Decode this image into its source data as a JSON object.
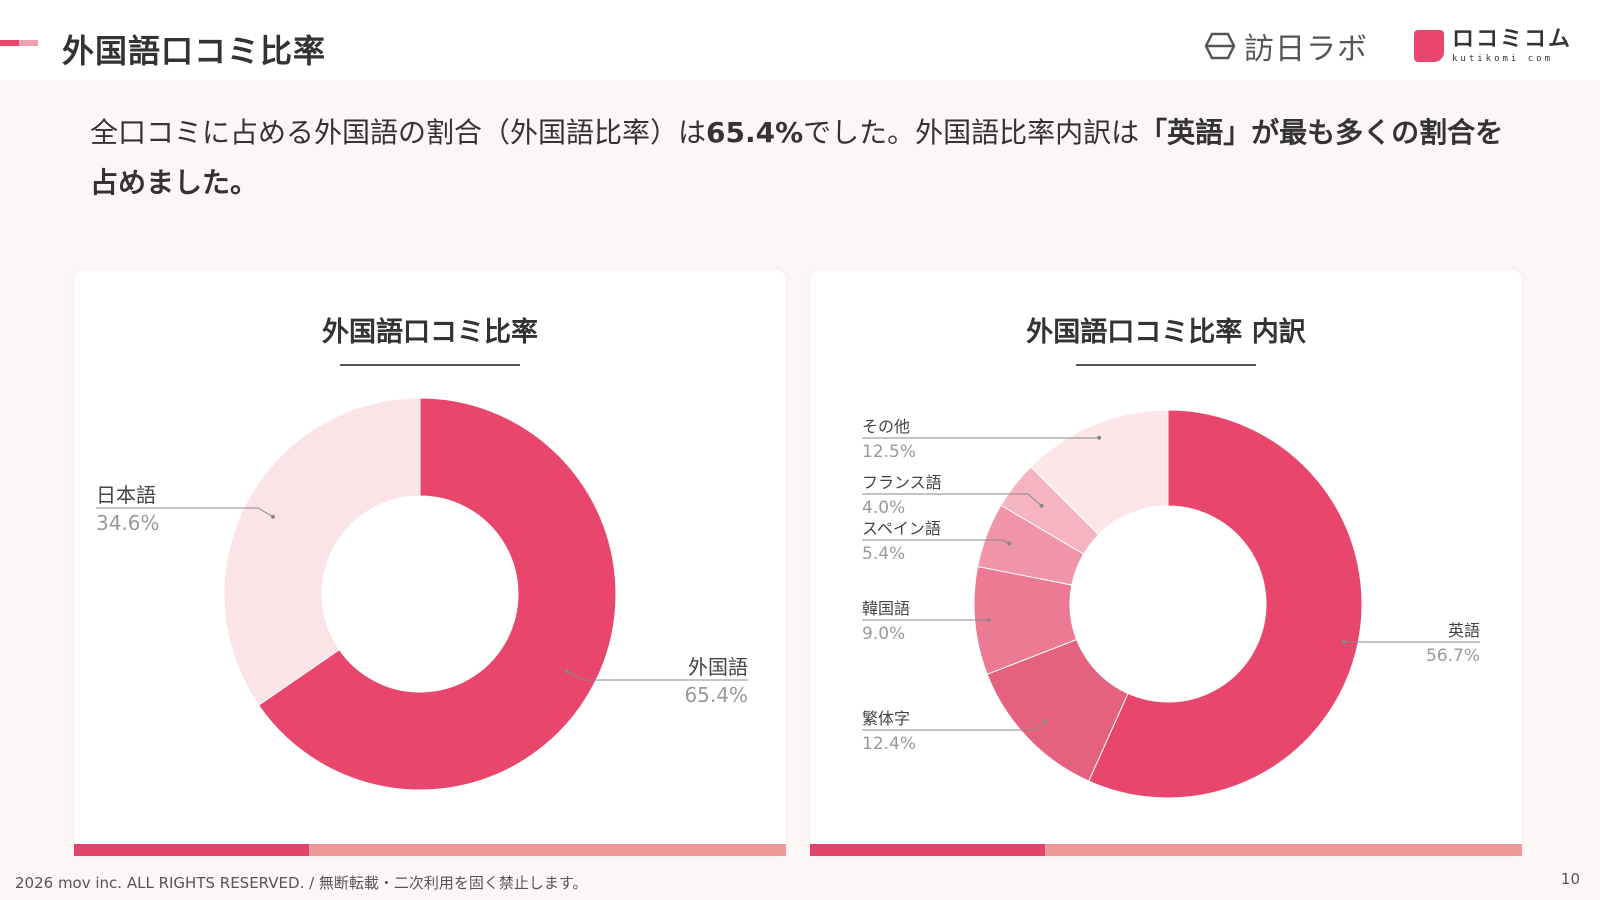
{
  "header": {
    "title": "外国語口コミ比率",
    "logo_houbichi": "訪日ラボ",
    "logo_kuchikomi": "ロコミコム",
    "logo_kuchikomi_sub": "kutikomi com"
  },
  "lead": {
    "part1": "全口コミに占める外国語の割合（外国語比率）は",
    "bold1": "65.4%",
    "part2": "でした。外国語比率内訳は",
    "bold2": "「英語」が最も多くの割合を占めました。"
  },
  "colors": {
    "accent": "#e8466b",
    "light": "#fbe4e8",
    "bar_a": "#e0446a",
    "bar_b": "#ee9898"
  },
  "chart_data": [
    {
      "type": "pie",
      "title": "外国語口コミ比率",
      "slices": [
        {
          "label": "外国語",
          "value": 65.4,
          "display": "65.4%",
          "color": "#e8466b"
        },
        {
          "label": "日本語",
          "value": 34.6,
          "display": "34.6%",
          "color": "#fbe4e8"
        }
      ]
    },
    {
      "type": "pie",
      "title": "外国語口コミ比率 内訳",
      "slices": [
        {
          "label": "英語",
          "value": 56.7,
          "display": "56.7%",
          "color": "#e8466b"
        },
        {
          "label": "繁体字",
          "value": 12.4,
          "display": "12.4%",
          "color": "#e5627f"
        },
        {
          "label": "韓国語",
          "value": 9.0,
          "display": "9.0%",
          "color": "#ec7a93"
        },
        {
          "label": "スペイン語",
          "value": 5.4,
          "display": "5.4%",
          "color": "#f095a8"
        },
        {
          "label": "フランス語",
          "value": 4.0,
          "display": "4.0%",
          "color": "#f4b4c1"
        },
        {
          "label": "その他",
          "value": 12.5,
          "display": "12.5%",
          "color": "#fde6ea"
        }
      ]
    }
  ],
  "footer": {
    "copyright": "2026 mov inc. ALL RIGHTS RESERVED. / 無断転載・二次利用を固く禁止します。",
    "page_number": "10"
  }
}
